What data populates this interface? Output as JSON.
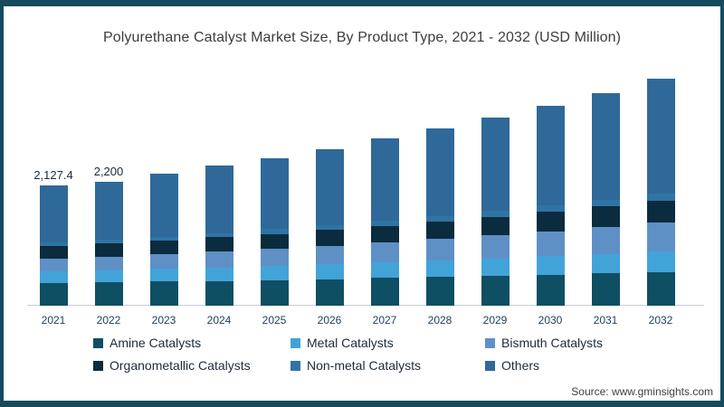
{
  "title": "Polyurethane Catalyst Market Size, By Product Type, 2021 - 2032 (USD Million)",
  "source": "Source: www.gminsights.com",
  "colors": {
    "frame_border": "#154b5c",
    "axis_line": "#c9ced4",
    "title_text": "#3d3d3d",
    "year_text": "#22415c",
    "value_text": "#1b2a36",
    "legend_text": "#1c2b3a",
    "source_text": "#404040"
  },
  "chart_data": {
    "type": "bar",
    "stacked": true,
    "title": "Polyurethane Catalyst Market Size, By Product Type, 2021 - 2032 (USD Million)",
    "units": "USD Million",
    "grid": false,
    "legend_position": "bottom",
    "categories": [
      "2021",
      "2022",
      "2023",
      "2024",
      "2025",
      "2026",
      "2027",
      "2028",
      "2029",
      "2030",
      "2031",
      "2032"
    ],
    "series": [
      {
        "name": "Amine Catalysts",
        "color": "#0e4f63",
        "values": [
          400,
          410,
          425,
          440,
          455,
          472,
          490,
          508,
          528,
          548,
          570,
          595
        ]
      },
      {
        "name": "Metal Catalysts",
        "color": "#42a3d8",
        "values": [
          210,
          218,
          228,
          240,
          252,
          265,
          280,
          296,
          312,
          330,
          348,
          368
        ]
      },
      {
        "name": "Bismuth Catalysts",
        "color": "#5e90c5",
        "values": [
          225,
          240,
          258,
          278,
          300,
          324,
          350,
          378,
          408,
          440,
          475,
          512
        ]
      },
      {
        "name": "Organometallic Catalysts",
        "color": "#0b2c3e",
        "values": [
          225,
          233,
          243,
          254,
          266,
          280,
          295,
          311,
          329,
          348,
          368,
          390
        ]
      },
      {
        "name": "Non-metal Catalysts",
        "color": "#2f74a5",
        "values": [
          65,
          68,
          72,
          77,
          82,
          88,
          94,
          100,
          107,
          114,
          122,
          130
        ]
      },
      {
        "name": "Others",
        "color": "#2f6999",
        "values": [
          1002.4,
          1031,
          1109,
          1191,
          1265,
          1351,
          1451,
          1547,
          1656,
          1760,
          1877,
          2021
        ]
      }
    ],
    "totals": [
      2127.4,
      2200,
      2335,
      2480,
      2620,
      2780,
      2960,
      3140,
      3340,
      3540,
      3760,
      4016
    ],
    "bar_value_labels": [
      "2,127.4",
      "2,200",
      "",
      "",
      "",
      "",
      "",
      "",
      "",
      "",
      "",
      ""
    ]
  }
}
